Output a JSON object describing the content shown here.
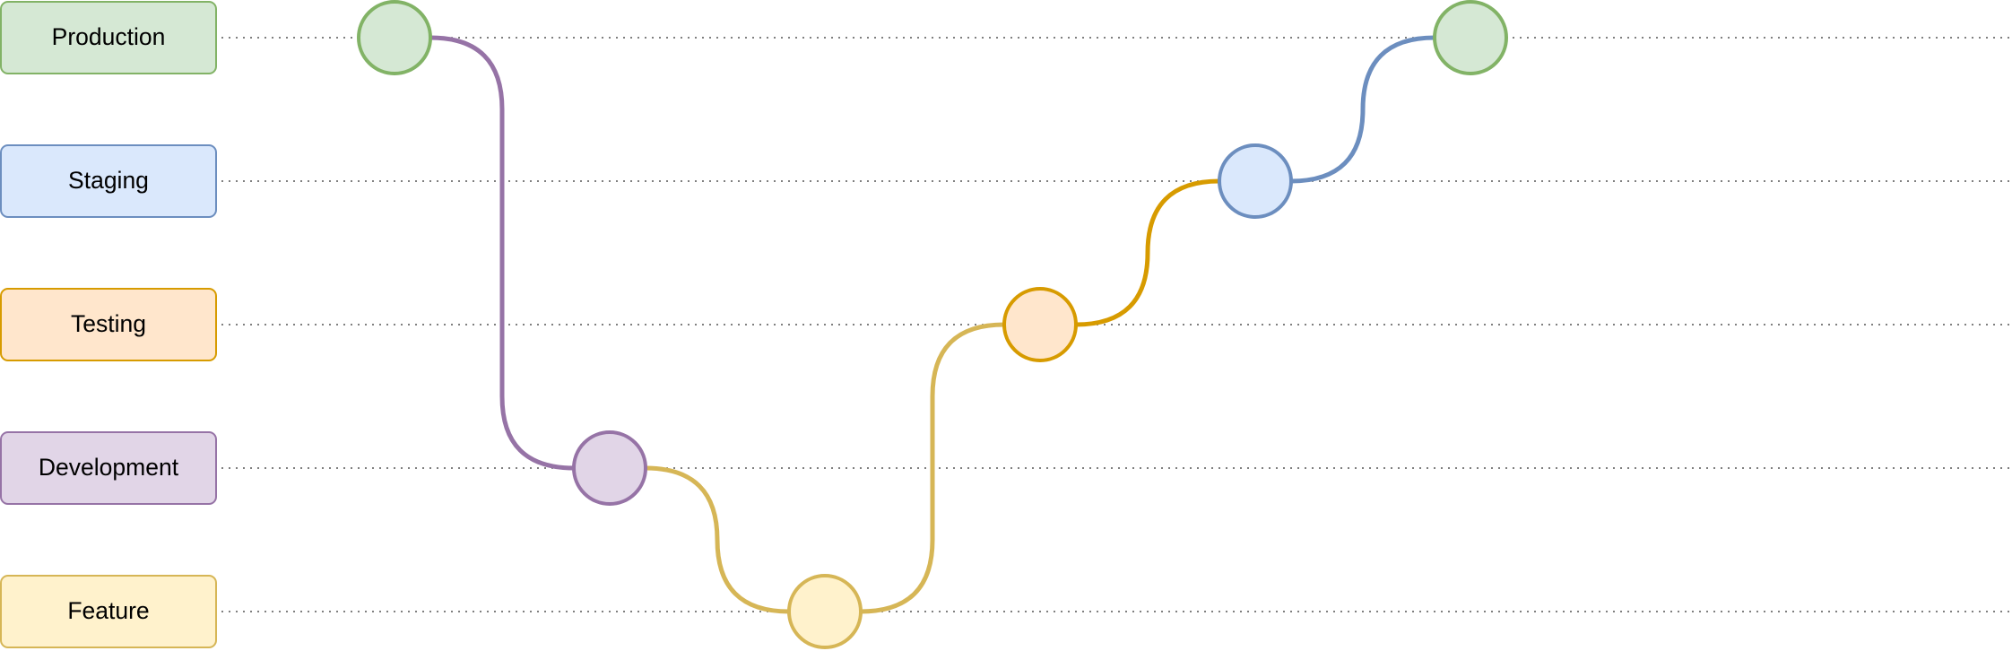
{
  "diagram": {
    "lanes": [
      {
        "id": "production",
        "label": "Production",
        "fill": "#d5e8d4",
        "stroke": "#82b366"
      },
      {
        "id": "staging",
        "label": "Staging",
        "fill": "#dae8fc",
        "stroke": "#6c8ebf"
      },
      {
        "id": "testing",
        "label": "Testing",
        "fill": "#ffe6cc",
        "stroke": "#d79b00"
      },
      {
        "id": "development",
        "label": "Development",
        "fill": "#e1d5e7",
        "stroke": "#9673a6"
      },
      {
        "id": "feature",
        "label": "Feature",
        "fill": "#fff2cc",
        "stroke": "#d6b656"
      }
    ],
    "nodes": [
      {
        "id": "n1",
        "lane": "production"
      },
      {
        "id": "n2",
        "lane": "development"
      },
      {
        "id": "n3",
        "lane": "feature"
      },
      {
        "id": "n4",
        "lane": "testing"
      },
      {
        "id": "n5",
        "lane": "staging"
      },
      {
        "id": "n6",
        "lane": "production"
      }
    ],
    "edges": [
      {
        "from": "n1",
        "to": "n2",
        "color": "#9673a6"
      },
      {
        "from": "n2",
        "to": "n3",
        "color": "#d6b656"
      },
      {
        "from": "n3",
        "to": "n4",
        "color": "#d6b656"
      },
      {
        "from": "n4",
        "to": "n5",
        "color": "#d79b00"
      },
      {
        "from": "n5",
        "to": "n6",
        "color": "#6c8ebf"
      }
    ],
    "guide_line_color": "#555555"
  }
}
